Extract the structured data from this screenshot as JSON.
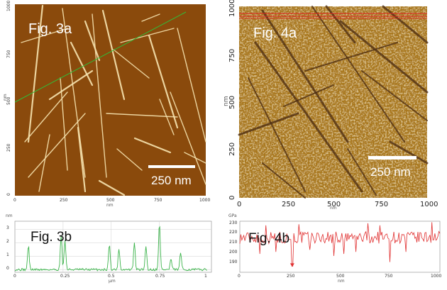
{
  "fig3a": {
    "label": "Fig. 3a",
    "scale_bar": "250 nm",
    "x_ticks": [
      "0",
      "250",
      "500",
      "750",
      "1000"
    ],
    "y_ticks": [
      "1000",
      "750",
      "500",
      "250",
      "0"
    ],
    "x_unit": "nm",
    "y_unit": "nm",
    "colors": {
      "background": "#8a4a0c",
      "fiber": "#f7e4b0",
      "line": "#2fbf3a"
    }
  },
  "fig4a": {
    "label": "Fig. 4a",
    "scale_bar": "250 nm",
    "x_ticks": [
      "0",
      "250",
      "500",
      "750",
      "1000"
    ],
    "y_ticks": [
      "1000",
      "750",
      "500",
      "250",
      "0"
    ],
    "x_unit": "nm",
    "y_unit": "nm",
    "colors": {
      "background": "#b98c2c",
      "fiber": "#4a2a10",
      "line": "#e02020"
    }
  },
  "chart_data": [
    {
      "type": "line",
      "label": "Fig. 3b",
      "title": "",
      "xlabel": "µm",
      "ylabel": "nm",
      "xlim": [
        0,
        1.02
      ],
      "ylim": [
        -0.2,
        3.6
      ],
      "x_ticks": [
        "0",
        "0.25",
        "0.5",
        "0.75",
        "1"
      ],
      "y_ticks": [
        "3",
        "2",
        "1",
        "0"
      ],
      "grid": true,
      "color": "#3cb44b",
      "peaks": [
        {
          "x": 0.07,
          "y": 1.8
        },
        {
          "x": 0.24,
          "y": 2.6
        },
        {
          "x": 0.26,
          "y": 2.2
        },
        {
          "x": 0.49,
          "y": 1.9
        },
        {
          "x": 0.54,
          "y": 1.6
        },
        {
          "x": 0.62,
          "y": 2.0
        },
        {
          "x": 0.68,
          "y": 1.8
        },
        {
          "x": 0.75,
          "y": 3.5
        },
        {
          "x": 0.81,
          "y": 0.8
        },
        {
          "x": 0.86,
          "y": 1.3
        }
      ],
      "baseline": 0.0
    },
    {
      "type": "line",
      "label": "Fig. 4b",
      "title": "",
      "xlabel": "nm",
      "ylabel": "GPa",
      "xlim": [
        0,
        1000
      ],
      "ylim": [
        180,
        230
      ],
      "x_ticks": [
        "0",
        "250",
        "500",
        "750",
        "1000"
      ],
      "y_ticks": [
        "230",
        "220",
        "210",
        "200",
        "190"
      ],
      "grid": false,
      "color": "#e03030",
      "mean": 214,
      "dips": [
        {
          "x": 100,
          "y": 198
        },
        {
          "x": 180,
          "y": 200
        },
        {
          "x": 262,
          "y": 186
        },
        {
          "x": 350,
          "y": 202
        },
        {
          "x": 470,
          "y": 196
        },
        {
          "x": 520,
          "y": 198
        },
        {
          "x": 580,
          "y": 200
        },
        {
          "x": 750,
          "y": 190
        },
        {
          "x": 830,
          "y": 200
        }
      ],
      "spikes": [
        {
          "x": 130,
          "y": 226
        },
        {
          "x": 295,
          "y": 227
        },
        {
          "x": 640,
          "y": 228
        },
        {
          "x": 700,
          "y": 226
        },
        {
          "x": 960,
          "y": 229
        }
      ]
    }
  ]
}
